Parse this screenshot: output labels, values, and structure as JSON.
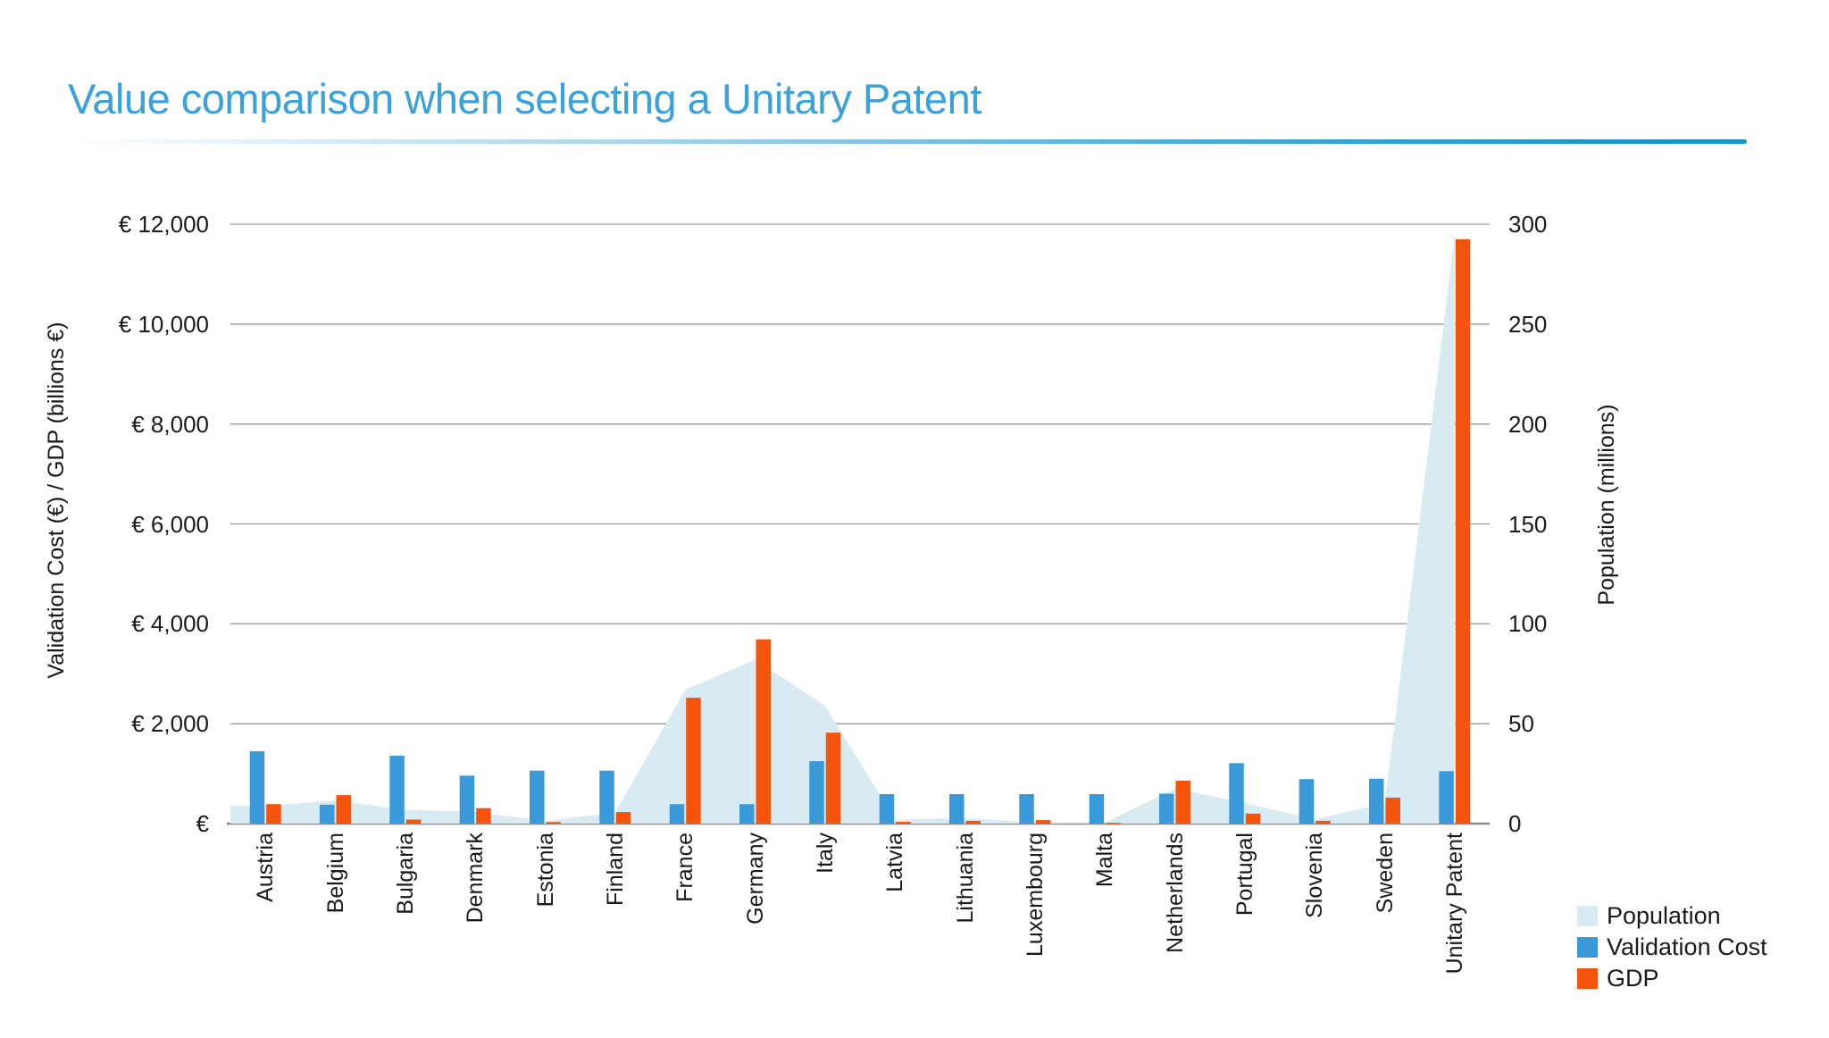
{
  "title": "Value comparison when selecting a Unitary Patent",
  "title_color": "#3AA1DB",
  "y_axis_left": {
    "title": "Validation Cost (€) / GDP (billions €)",
    "ticks": [
      "€ 12,000",
      "€ 10,000",
      "€ 8,000",
      "€ 6,000",
      "€ 4,000",
      "€ 2,000",
      "€"
    ],
    "range": [
      0,
      12000
    ]
  },
  "y_axis_right": {
    "title": "Population (millions)",
    "ticks": [
      "300",
      "250",
      "200",
      "150",
      "100",
      "50",
      "0"
    ],
    "range": [
      0,
      300
    ]
  },
  "legend": [
    {
      "label": "Population",
      "color": "#D8EAF2"
    },
    {
      "label": "Validation Cost",
      "color": "#3A9AD9"
    },
    {
      "label": "GDP",
      "color": "#F4540C"
    }
  ],
  "chart_data": {
    "type": "combo: area (right axis) + grouped bars (left axis)",
    "categories": [
      "Austria",
      "Belgium",
      "Bulgaria",
      "Denmark",
      "Estonia",
      "Finland",
      "France",
      "Germany",
      "Italy",
      "Latvia",
      "Lithuania",
      "Luxembourg",
      "Malta",
      "Netherlands",
      "Portugal",
      "Slovenia",
      "Sweden",
      "Unitary Patent"
    ],
    "series": [
      {
        "name": "Population",
        "type": "area",
        "axis": "right",
        "unit": "millions",
        "color": "#D8EAF2",
        "values": [
          8.9,
          11.5,
          6.9,
          5.8,
          1.3,
          5.5,
          67,
          82,
          59,
          1.9,
          2.8,
          0.6,
          0.5,
          17.5,
          10.3,
          2.1,
          10.2,
          294
        ]
      },
      {
        "name": "Validation Cost",
        "type": "bar",
        "axis": "left",
        "unit": "€",
        "color": "#3A9AD9",
        "values": [
          1450,
          380,
          1360,
          960,
          1060,
          1060,
          390,
          390,
          1250,
          590,
          590,
          590,
          590,
          600,
          1210,
          890,
          900,
          1050
        ]
      },
      {
        "name": "GDP",
        "type": "bar",
        "axis": "left",
        "unit": "billions €",
        "color": "#F4540C",
        "values": [
          390,
          570,
          80,
          310,
          30,
          230,
          2520,
          3690,
          1820,
          35,
          55,
          70,
          15,
          860,
          200,
          55,
          520,
          11700
        ]
      }
    ],
    "left_axis_range": [
      0,
      12000
    ],
    "right_axis_range": [
      0,
      300
    ],
    "gridlines": 7,
    "grid": true,
    "legend_position": "bottom-right"
  }
}
